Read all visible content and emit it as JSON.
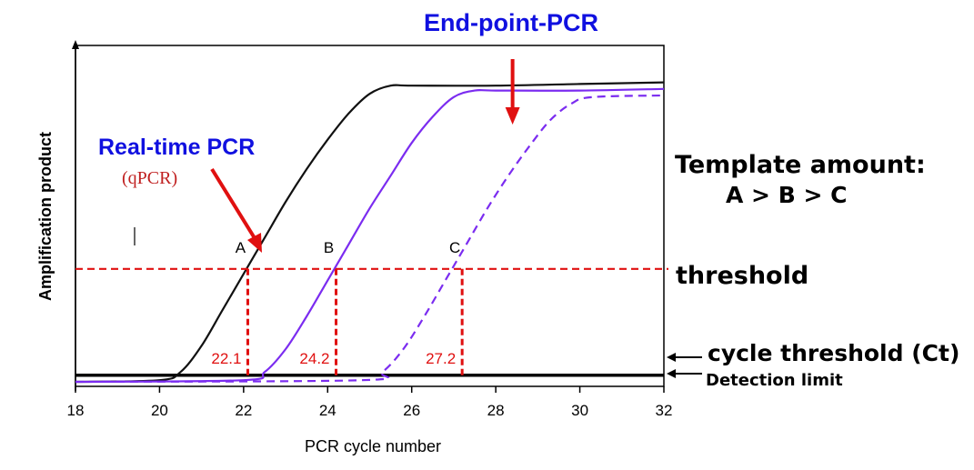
{
  "annotations": {
    "end_point": "End-point-PCR",
    "real_time": "Real-time PCR",
    "real_time_sub": "(qPCR)",
    "template_amount": "Template amount:",
    "template_order": "A > B > C",
    "threshold": "threshold",
    "cycle_threshold": "cycle threshold (Ct)",
    "detection_limit": "Detection limit"
  },
  "colors": {
    "curve_a": "#111111",
    "curve_b": "#7b2cf0",
    "curve_c": "#7b2cf0",
    "threshold": "#e01010",
    "arrow": "#e01010",
    "title": "#1010e0"
  },
  "chart_data": {
    "type": "line",
    "xlabel": "PCR cycle number",
    "ylabel": "Amplification product",
    "xlim": [
      18,
      32
    ],
    "x_ticks": [
      18,
      20,
      22,
      24,
      26,
      28,
      30,
      32
    ],
    "ylim": [
      0,
      1
    ],
    "grid": false,
    "threshold": 0.345,
    "detection_limit": 0.02,
    "series": [
      {
        "name": "A",
        "style": "solid",
        "x": [
          18,
          20,
          20.5,
          21,
          21.5,
          22,
          22.5,
          23,
          23.5,
          24,
          24.5,
          25,
          25.5,
          26,
          28,
          30,
          32
        ],
        "y": [
          0,
          0.005,
          0.03,
          0.11,
          0.22,
          0.33,
          0.44,
          0.55,
          0.65,
          0.74,
          0.82,
          0.88,
          0.905,
          0.905,
          0.905,
          0.91,
          0.915
        ]
      },
      {
        "name": "B",
        "style": "solid",
        "x": [
          18,
          22,
          22.5,
          23,
          23.5,
          24,
          24.5,
          25,
          25.5,
          26,
          26.5,
          27,
          27.5,
          28,
          30,
          32
        ],
        "y": [
          0,
          0.005,
          0.03,
          0.1,
          0.2,
          0.31,
          0.42,
          0.53,
          0.63,
          0.73,
          0.81,
          0.87,
          0.89,
          0.89,
          0.89,
          0.895
        ]
      },
      {
        "name": "C",
        "style": "dashed",
        "x": [
          18,
          24.8,
          25.3,
          25.8,
          26.3,
          26.8,
          27.3,
          27.8,
          28.3,
          28.8,
          29.3,
          29.8,
          30.3,
          32
        ],
        "y": [
          0,
          0.005,
          0.03,
          0.1,
          0.2,
          0.31,
          0.42,
          0.53,
          0.63,
          0.72,
          0.8,
          0.85,
          0.87,
          0.875
        ]
      }
    ],
    "point_labels": [
      {
        "text": "A",
        "series": "A"
      },
      {
        "text": "B",
        "series": "B"
      },
      {
        "text": "C",
        "series": "C"
      }
    ],
    "ct_values": [
      {
        "label": "22.1",
        "x": 22.1
      },
      {
        "label": "24.2",
        "x": 24.2
      },
      {
        "label": "27.2",
        "x": 27.2
      }
    ],
    "end_point_x": 28.4
  }
}
